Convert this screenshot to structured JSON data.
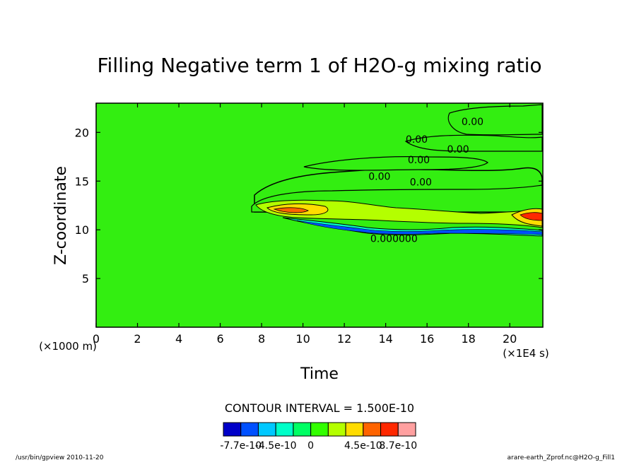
{
  "chart_data": {
    "type": "heatmap",
    "title": "Filling Negative term 1 of H2O-g mixing ratio",
    "xlabel": "Time",
    "ylabel": "Z-coordinate",
    "x_unit": "(×1E4 s)",
    "y_unit": "(×1000 m)",
    "xlim": [
      0,
      21.6
    ],
    "ylim": [
      0,
      23
    ],
    "x_ticks": [
      0,
      2,
      4,
      6,
      8,
      10,
      12,
      14,
      16,
      18,
      20
    ],
    "y_ticks": [
      5,
      10,
      15,
      20
    ],
    "contour_interval_text": "CONTOUR INTERVAL = 1.500E-10",
    "contour_labels": [
      {
        "x": 18.2,
        "y": 21.1,
        "text": "0.00"
      },
      {
        "x": 15.5,
        "y": 19.3,
        "text": "0.00"
      },
      {
        "x": 17.5,
        "y": 18.3,
        "text": "0.00"
      },
      {
        "x": 15.6,
        "y": 17.2,
        "text": "0.00"
      },
      {
        "x": 13.7,
        "y": 15.5,
        "text": "0.00"
      },
      {
        "x": 15.7,
        "y": 14.9,
        "text": "0.00"
      },
      {
        "x": 14.4,
        "y": 9.1,
        "text": "0.000000"
      }
    ],
    "colorbar": {
      "colors": [
        "#0000c8",
        "#0050ff",
        "#00c8ff",
        "#00ffc8",
        "#00ff64",
        "#32ff00",
        "#b4ff00",
        "#ffdc00",
        "#ff6400",
        "#ff2800",
        "#ffa0a0"
      ],
      "tick_labels": [
        "-7.7e-10",
        "-4.5e-10",
        "0",
        "4.5e-10",
        "8.7e-10"
      ]
    },
    "background_color": "#33ee11"
  },
  "footer": {
    "left": "/usr/bin/gpview  2010-11-20",
    "right": "arare-earth_Zprof.nc@H2O-g_Fill1"
  }
}
